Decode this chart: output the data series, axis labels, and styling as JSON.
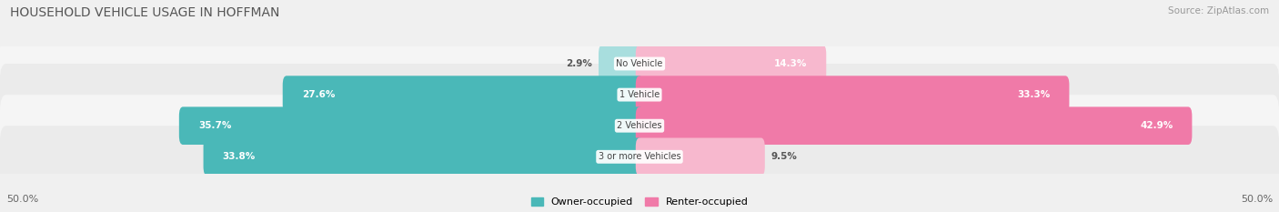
{
  "title": "HOUSEHOLD VEHICLE USAGE IN HOFFMAN",
  "source": "Source: ZipAtlas.com",
  "categories": [
    "No Vehicle",
    "1 Vehicle",
    "2 Vehicles",
    "3 or more Vehicles"
  ],
  "owner_values": [
    2.9,
    27.6,
    35.7,
    33.8
  ],
  "renter_values": [
    14.3,
    33.3,
    42.9,
    9.5
  ],
  "owner_color": "#4ab8b8",
  "renter_color": "#f07aa8",
  "owner_color_light": "#a8dede",
  "renter_color_light": "#f7b8ce",
  "owner_label": "Owner-occupied",
  "renter_label": "Renter-occupied",
  "xlim_left": -50,
  "xlim_right": 50,
  "background_color": "#f0f0f0",
  "row_bg_even": "#f5f5f5",
  "row_bg_odd": "#ebebeb",
  "title_fontsize": 10,
  "source_fontsize": 7.5,
  "bar_height": 0.62,
  "label_inside_threshold": 10
}
